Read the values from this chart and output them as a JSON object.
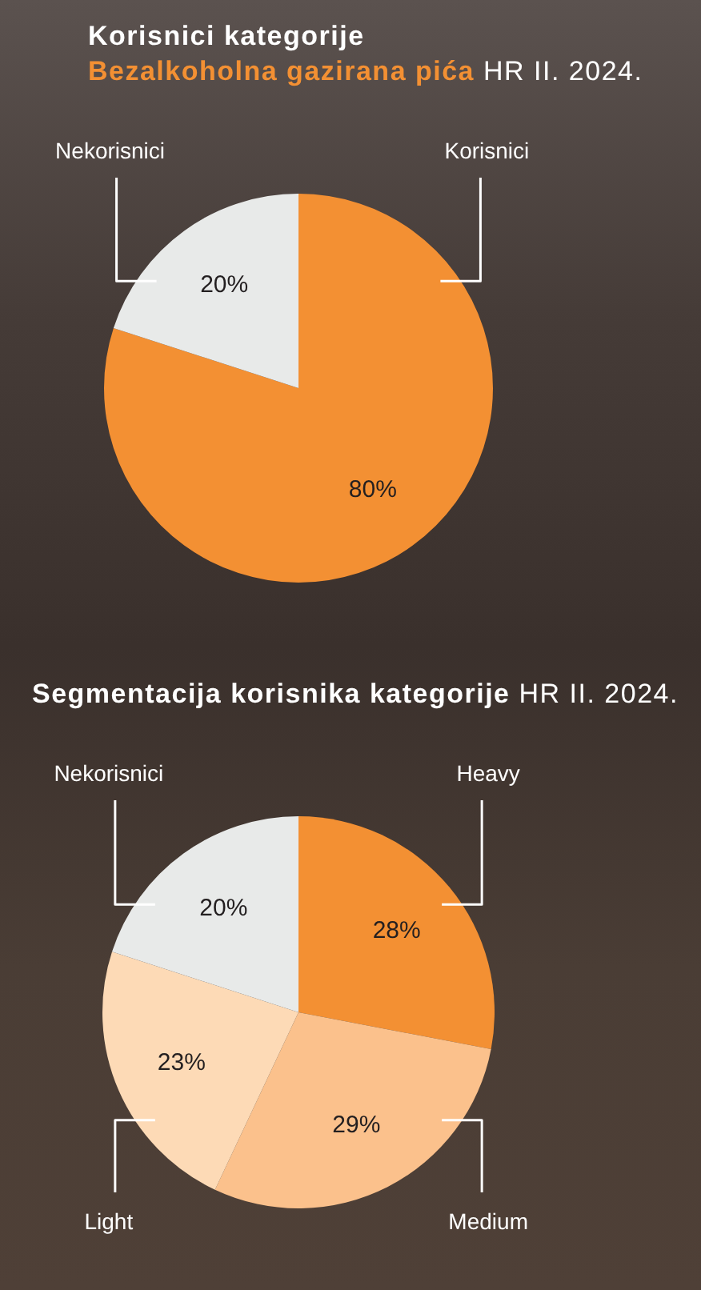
{
  "chart_data": [
    {
      "type": "pie",
      "title": "Korisnici kategorije",
      "subtitle": "Bezalkoholna gazirana pića HR II. 2024.",
      "categories": [
        "Korisnici",
        "Nekorisnici"
      ],
      "values": [
        80,
        20
      ],
      "colors": [
        "#f39033",
        "#e8eae9"
      ],
      "value_labels": [
        "80%",
        "20%"
      ]
    },
    {
      "type": "pie",
      "title": "Segmentacija korisnika kategorije HR II. 2024.",
      "categories": [
        "Heavy",
        "Medium",
        "Light",
        "Nekorisnici"
      ],
      "values": [
        28,
        29,
        23,
        20
      ],
      "colors": [
        "#f39033",
        "#fbc18c",
        "#fddab6",
        "#e8eae9"
      ],
      "value_labels": [
        "28%",
        "29%",
        "23%",
        "20%"
      ]
    }
  ]
}
